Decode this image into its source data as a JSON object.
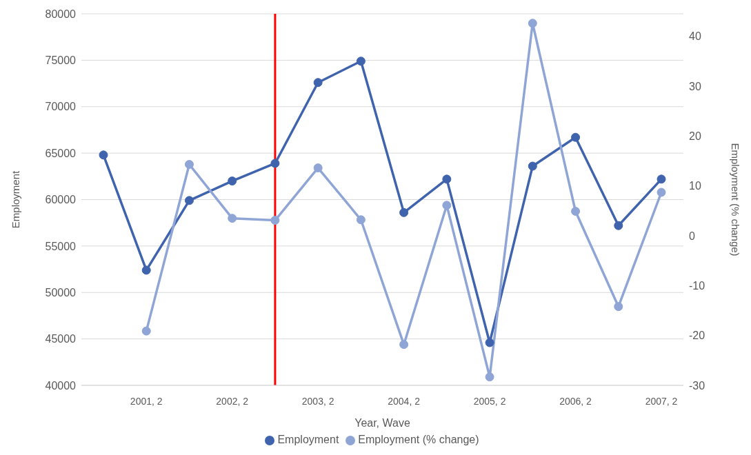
{
  "chart_data": {
    "type": "line",
    "xlabel": "Year, Wave",
    "ylabel": "Employment",
    "y2label": "Employment (% change)",
    "categories": [
      null,
      "2001, 2",
      null,
      "2002, 2",
      null,
      "2003, 2",
      null,
      "2004, 2",
      null,
      "2005, 2",
      null,
      "2006, 2",
      null,
      "2007, 2"
    ],
    "series": [
      {
        "name": "Employment",
        "color": "#3f63ad",
        "values": [
          64800,
          52400,
          59900,
          62000,
          63900,
          72600,
          74900,
          58600,
          62200,
          44600,
          63600,
          66700,
          57200,
          62200
        ]
      },
      {
        "name": "Employment (% change)",
        "color": "#8fa5d6",
        "axis": "y2",
        "values": [
          null,
          -19.1,
          14.3,
          3.5,
          3.1,
          13.6,
          3.2,
          -21.8,
          6.1,
          -28.3,
          42.6,
          4.9,
          -14.2,
          8.7
        ]
      }
    ],
    "ylim": [
      40000,
      80000
    ],
    "yticks": [
      40000,
      45000,
      50000,
      55000,
      60000,
      65000,
      70000,
      75000,
      80000
    ],
    "y2lim": [
      -30,
      44.5
    ],
    "y2ticks": [
      -30,
      -20,
      -10,
      0,
      10,
      20,
      30,
      40
    ],
    "grid": "y",
    "legend": "bottom",
    "marker": "circle",
    "line_style": "solid"
  }
}
